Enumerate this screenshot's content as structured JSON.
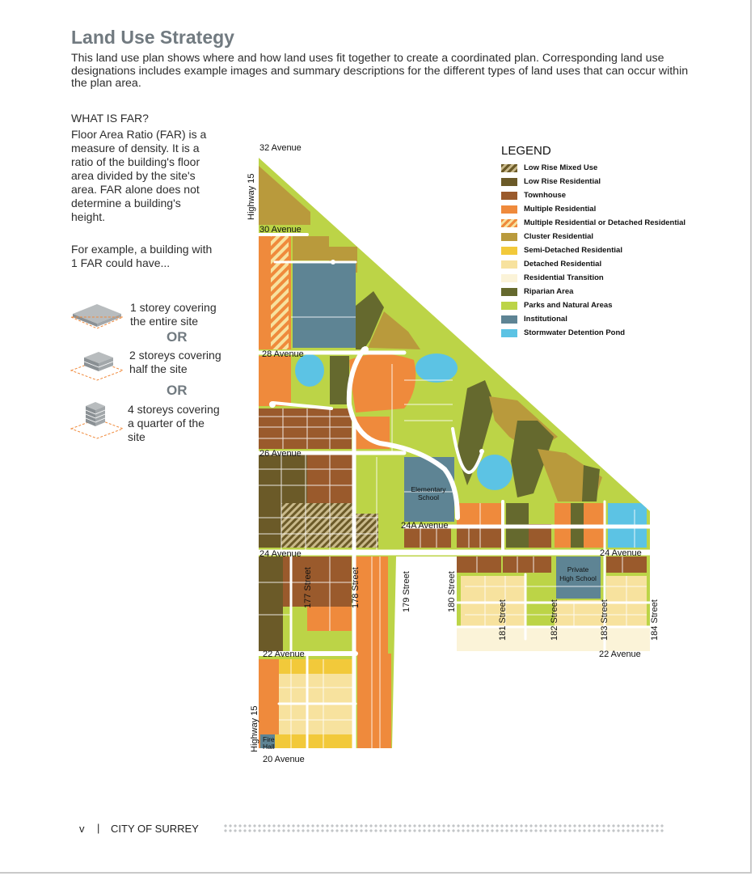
{
  "title": "Land Use Strategy",
  "intro": "This land use plan shows where and how land uses fit together to create a coordinated plan. Corresponding land use designations includes example images and summary descriptions for the different types of land uses that can occur within the plan area.",
  "far": {
    "heading": "WHAT IS FAR?",
    "text": "Floor Area Ratio (FAR) is a measure of density. It is a ratio of the building's floor area divided by the site's area. FAR alone does not determine a building's height.",
    "example": "For example, a building with 1 FAR could have...",
    "options": [
      {
        "label": "1 storey covering the entire site"
      },
      {
        "label": "2 storeys covering half the site"
      },
      {
        "label": "4 storeys covering a quarter of the site"
      }
    ],
    "or_label": "OR"
  },
  "legend": {
    "title": "LEGEND",
    "items": [
      {
        "label": "Low Rise Mixed Use",
        "color": "#8c7a4e",
        "pattern": "hatch-mixed"
      },
      {
        "label": "Low Rise Residential",
        "color": "#6b5a28"
      },
      {
        "label": "Townhouse",
        "color": "#9a5a2c"
      },
      {
        "label": "Multiple Residential",
        "color": "#ef8a3c"
      },
      {
        "label": "Multiple Residential or Detached Residential",
        "color": "#ef8a3c",
        "pattern": "hatch-multi"
      },
      {
        "label": "Cluster Residential",
        "color": "#b99a3c"
      },
      {
        "label": "Semi-Detached Residential",
        "color": "#f2c93a"
      },
      {
        "label": "Detached Residential",
        "color": "#f7e29e"
      },
      {
        "label": "Residential Transition",
        "color": "#fbf3d8"
      },
      {
        "label": "Riparian Area",
        "color": "#65692e"
      },
      {
        "label": "Parks and Natural Areas",
        "color": "#bcd447"
      },
      {
        "label": "Institutional",
        "color": "#5e8494"
      },
      {
        "label": "Stormwater Detention Pond",
        "color": "#5cc3e4"
      }
    ]
  },
  "map": {
    "labels": {
      "ave32": "32 Avenue",
      "hwy15_top": "Highway 15",
      "ave30": "30 Avenue",
      "ave28": "28 Avenue",
      "ave26": "26 Avenue",
      "ave24a": "24A Avenue",
      "ave24_w": "24 Avenue",
      "ave24_e": "24 Avenue",
      "st177": "177 Street",
      "st178": "178 Street",
      "st179": "179 Street",
      "st180": "180 Street",
      "st181": "181 Street",
      "st182": "182 Street",
      "st183": "183 Street",
      "st184": "184 Street",
      "ave22_w": "22 Avenue",
      "ave22_e": "22 Avenue",
      "hwy15_bottom": "Highway 15",
      "ave20": "20 Avenue"
    },
    "institutions": {
      "elementary_1": "Elementary",
      "elementary_2": "School",
      "private_1": "Private",
      "private_2": "High School",
      "firehall_1": "Fire",
      "firehall_2": "Hall"
    }
  },
  "footer": {
    "page": "v",
    "separator": "|",
    "org": "CITY OF SURREY"
  }
}
